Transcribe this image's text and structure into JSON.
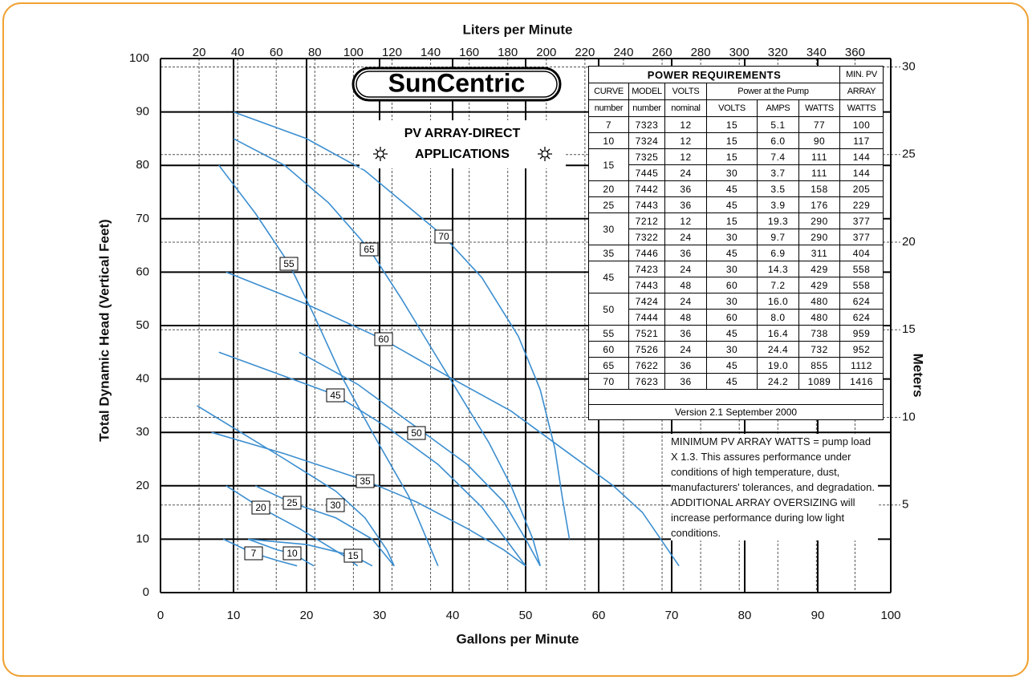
{
  "chart_data": {
    "type": "line",
    "xlabel": "Gallons per Minute",
    "ylabel": "Total Dynamic Head (Vertical Feet)",
    "x2label": "Liters per Minute",
    "y2label": "Meters",
    "logo": "SunCentric",
    "box_title": [
      "PV ARRAY-DIRECT",
      "APPLICATIONS"
    ],
    "color": "#3b8ed0",
    "xlim": [
      0,
      100
    ],
    "xticks": [
      0,
      10,
      20,
      30,
      40,
      50,
      60,
      70,
      80,
      90,
      100
    ],
    "ylim": [
      0,
      100
    ],
    "yticks": [
      0,
      10,
      20,
      30,
      40,
      50,
      60,
      70,
      80,
      90,
      100
    ],
    "x2lim": [
      0,
      378.54
    ],
    "x2ticks": [
      20,
      40,
      60,
      80,
      100,
      120,
      140,
      160,
      180,
      200,
      220,
      240,
      260,
      280,
      300,
      320,
      340,
      360
    ],
    "y2lim": [
      0,
      30.48
    ],
    "y2ticks": [
      5,
      10,
      15,
      20,
      25,
      30
    ],
    "series": [
      {
        "name": "7",
        "x": [
          8.6,
          12.7,
          16,
          18.7
        ],
        "values": [
          10,
          7.4,
          6,
          5
        ]
      },
      {
        "name": "10",
        "x": [
          12,
          16,
          18,
          21
        ],
        "values": [
          10,
          8,
          7.4,
          5
        ]
      },
      {
        "name": "15",
        "x": [
          12,
          20,
          26.4,
          29
        ],
        "values": [
          10,
          9,
          6.9,
          5
        ]
      },
      {
        "name": "20",
        "x": [
          9,
          13.7,
          19,
          25,
          27
        ],
        "values": [
          20,
          15.9,
          12,
          7,
          5
        ]
      },
      {
        "name": "25",
        "x": [
          13,
          18,
          24,
          29,
          32
        ],
        "values": [
          20,
          16.8,
          14,
          10,
          5
        ]
      },
      {
        "name": "30",
        "x": [
          5,
          11,
          17,
          24,
          28,
          31,
          32
        ],
        "values": [
          35,
          30,
          25,
          19,
          14,
          8,
          5
        ]
      },
      {
        "name": "35",
        "x": [
          7,
          17,
          28,
          35,
          42,
          47,
          50
        ],
        "values": [
          30,
          26,
          21,
          17,
          12,
          8,
          5
        ]
      },
      {
        "name": "45",
        "x": [
          8,
          18,
          24,
          31,
          38,
          44,
          50
        ],
        "values": [
          45,
          40,
          37,
          31,
          24,
          16,
          5
        ]
      },
      {
        "name": "50",
        "x": [
          19,
          27,
          35,
          42,
          47,
          50,
          52
        ],
        "values": [
          45,
          39,
          31,
          24,
          17,
          10,
          5
        ]
      },
      {
        "name": "55",
        "x": [
          8,
          13,
          17.6,
          21,
          25,
          29,
          34,
          38
        ],
        "values": [
          80,
          71,
          61.6,
          52,
          40,
          30,
          18,
          5
        ]
      },
      {
        "name": "60",
        "x": [
          9,
          20,
          30.5,
          40,
          48,
          55,
          62,
          66,
          71
        ],
        "values": [
          60,
          54,
          47.4,
          40,
          34,
          27,
          20,
          15,
          5
        ]
      },
      {
        "name": "65",
        "x": [
          10,
          17,
          23,
          28.6,
          33,
          37,
          41,
          45,
          48,
          51,
          52
        ],
        "values": [
          85,
          80,
          73,
          64.3,
          55,
          46,
          37,
          28,
          20,
          10,
          5
        ]
      },
      {
        "name": "70",
        "x": [
          10,
          20,
          28,
          38.8,
          44,
          49,
          52,
          54,
          55,
          56
        ],
        "values": [
          90,
          85,
          79,
          66.7,
          59,
          48,
          38,
          27,
          18,
          10
        ]
      }
    ]
  },
  "table": {
    "title": "POWER REQUIREMENTS",
    "min_pv": "MIN. PV",
    "header2": [
      "CURVE",
      "MODEL",
      "VOLTS",
      "Power at the Pump",
      "ARRAY"
    ],
    "header3": [
      "number",
      "number",
      "nominal",
      "VOLTS",
      "AMPS",
      "WATTS",
      "WATTS"
    ],
    "groups": [
      {
        "curve": "7",
        "rows": [
          [
            "7323",
            "12",
            "15",
            "5.1",
            "77",
            "100"
          ]
        ]
      },
      {
        "curve": "10",
        "rows": [
          [
            "7324",
            "12",
            "15",
            "6.0",
            "90",
            "117"
          ]
        ]
      },
      {
        "curve": "15",
        "rows": [
          [
            "7325",
            "12",
            "15",
            "7.4",
            "111",
            "144"
          ],
          [
            "7445",
            "24",
            "30",
            "3.7",
            "111",
            "144"
          ]
        ]
      },
      {
        "curve": "20",
        "rows": [
          [
            "7442",
            "36",
            "45",
            "3.5",
            "158",
            "205"
          ]
        ]
      },
      {
        "curve": "25",
        "rows": [
          [
            "7443",
            "36",
            "45",
            "3.9",
            "176",
            "229"
          ]
        ]
      },
      {
        "curve": "30",
        "rows": [
          [
            "7212",
            "12",
            "15",
            "19.3",
            "290",
            "377"
          ],
          [
            "7322",
            "24",
            "30",
            "9.7",
            "290",
            "377"
          ]
        ]
      },
      {
        "curve": "35",
        "rows": [
          [
            "7446",
            "36",
            "45",
            "6.9",
            "311",
            "404"
          ]
        ]
      },
      {
        "curve": "45",
        "rows": [
          [
            "7423",
            "24",
            "30",
            "14.3",
            "429",
            "558"
          ],
          [
            "7443",
            "48",
            "60",
            "7.2",
            "429",
            "558"
          ]
        ]
      },
      {
        "curve": "50",
        "rows": [
          [
            "7424",
            "24",
            "30",
            "16.0",
            "480",
            "624"
          ],
          [
            "7444",
            "48",
            "60",
            "8.0",
            "480",
            "624"
          ]
        ]
      },
      {
        "curve": "55",
        "rows": [
          [
            "7521",
            "36",
            "45",
            "16.4",
            "738",
            "959"
          ]
        ]
      },
      {
        "curve": "60",
        "rows": [
          [
            "7526",
            "24",
            "30",
            "24.4",
            "732",
            "952"
          ]
        ]
      },
      {
        "curve": "65",
        "rows": [
          [
            "7622",
            "36",
            "45",
            "19.0",
            "855",
            "1112"
          ]
        ]
      },
      {
        "curve": "70",
        "rows": [
          [
            "7623",
            "36",
            "45",
            "24.2",
            "1089",
            "1416"
          ]
        ]
      }
    ],
    "version": "Version 2.1  September 2000"
  },
  "notes": [
    "MINIMUM PV ARRAY WATTS = pump load X 1.3. This assures performance under conditions of high temperature, dust, manufacturers' tolerances, and degradation.",
    "ADDITIONAL ARRAY OVERSIZING will increase performance during low light conditions."
  ]
}
